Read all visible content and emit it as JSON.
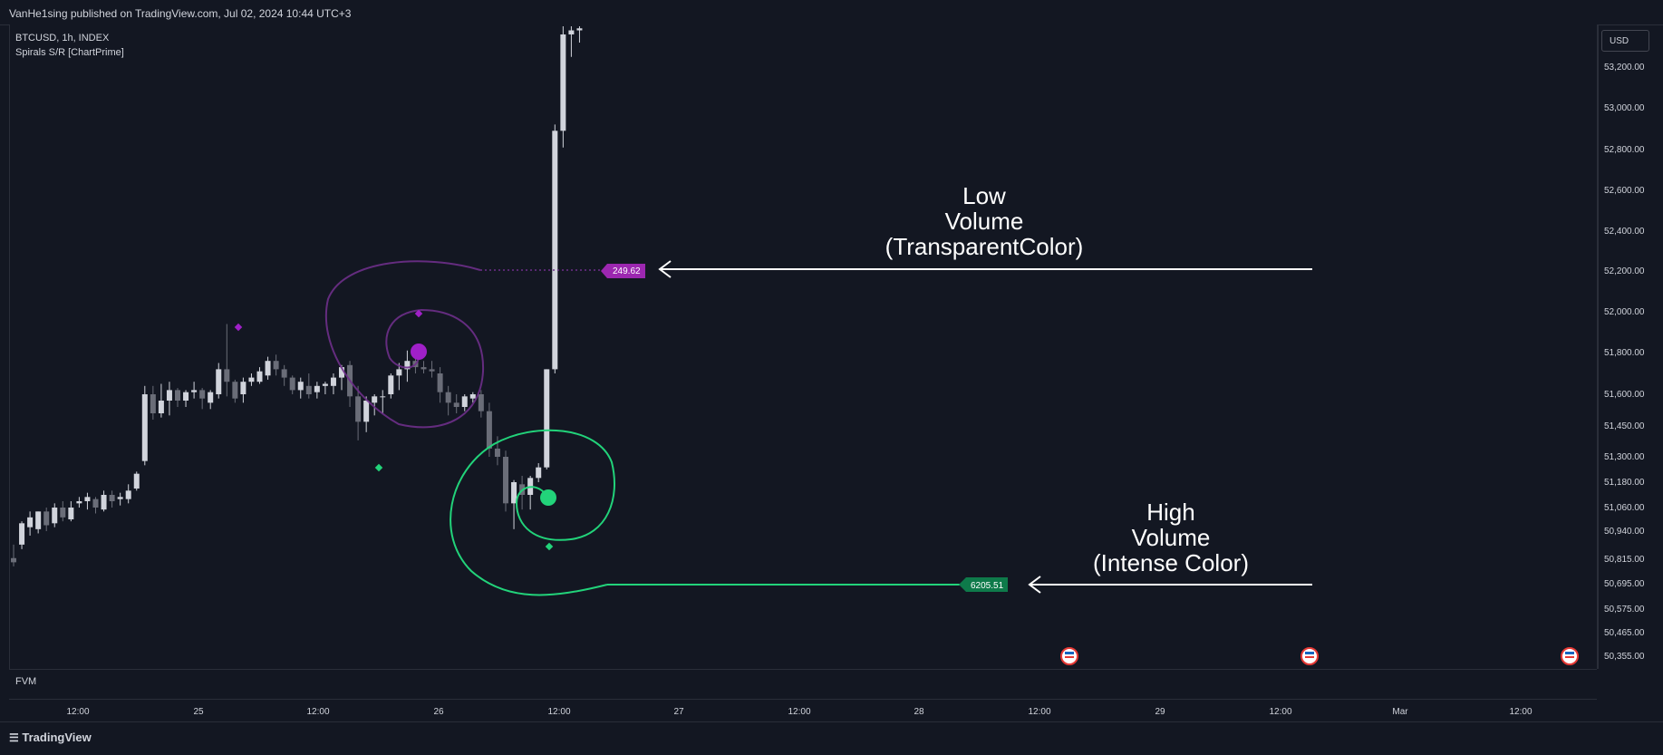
{
  "header": {
    "publisher": "VanHe1sing published on TradingView.com, Jul 02, 2024 10:44 UTC+3"
  },
  "legend": {
    "symbol": "BTCUSD, 1h, INDEX",
    "indicator": "Spirals S/R [ChartPrime]"
  },
  "price_axis": {
    "currency": "USD"
  },
  "pane": {
    "label": "FVM"
  },
  "footer": {
    "brand": "TradingView"
  },
  "annotations": {
    "low": {
      "line1": "Low",
      "line2": "Volume",
      "line3": "(TransparentColor)"
    },
    "high": {
      "line1": "High",
      "line2": "Volume",
      "line3": "(Intense Color)"
    }
  },
  "colors": {
    "background": "#131722",
    "up_candle": "#d1d4dc",
    "down_candle": "#6a6d78",
    "low_volume_spiral": "#6e2f8a",
    "low_volume_marker": "#a020c8",
    "high_volume_spiral": "#22d37a",
    "high_volume_label": "#0e7a4a",
    "annotation_text": "#ffffff"
  },
  "chart_data": {
    "type": "candlestick",
    "symbol": "BTCUSD",
    "timeframe": "1h",
    "y_ticks": [
      "53,200.00",
      "53,000.00",
      "52,800.00",
      "52,600.00",
      "52,400.00",
      "52,200.00",
      "52,000.00",
      "51,800.00",
      "51,600.00",
      "51,450.00",
      "51,300.00",
      "51,180.00",
      "51,060.00",
      "50,940.00",
      "50,815.00",
      "50,695.00",
      "50,575.00",
      "50,465.00",
      "50,355.00"
    ],
    "x_ticks": [
      "12:00",
      "25",
      "12:00",
      "26",
      "12:00",
      "27",
      "12:00",
      "28",
      "12:00",
      "29",
      "12:00",
      "Mar",
      "12:00"
    ],
    "candles": [
      {
        "o": 50820,
        "h": 50880,
        "l": 50780,
        "c": 50800
      },
      {
        "o": 50880,
        "h": 50990,
        "l": 50860,
        "c": 50980
      },
      {
        "o": 50960,
        "h": 51040,
        "l": 50920,
        "c": 51010
      },
      {
        "o": 50950,
        "h": 51040,
        "l": 50930,
        "c": 51040
      },
      {
        "o": 51040,
        "h": 51060,
        "l": 50940,
        "c": 50970
      },
      {
        "o": 50980,
        "h": 51080,
        "l": 50960,
        "c": 51060
      },
      {
        "o": 51060,
        "h": 51090,
        "l": 50990,
        "c": 51010
      },
      {
        "o": 51000,
        "h": 51090,
        "l": 50990,
        "c": 51060
      },
      {
        "o": 51080,
        "h": 51110,
        "l": 51060,
        "c": 51090
      },
      {
        "o": 51090,
        "h": 51130,
        "l": 51050,
        "c": 51110
      },
      {
        "o": 51100,
        "h": 51110,
        "l": 51030,
        "c": 51060
      },
      {
        "o": 51050,
        "h": 51140,
        "l": 51040,
        "c": 51120
      },
      {
        "o": 51120,
        "h": 51140,
        "l": 51060,
        "c": 51090
      },
      {
        "o": 51100,
        "h": 51130,
        "l": 51070,
        "c": 51110
      },
      {
        "o": 51100,
        "h": 51170,
        "l": 51080,
        "c": 51140
      },
      {
        "o": 51150,
        "h": 51230,
        "l": 51140,
        "c": 51220
      },
      {
        "o": 51280,
        "h": 51640,
        "l": 51260,
        "c": 51600
      },
      {
        "o": 51600,
        "h": 51640,
        "l": 51480,
        "c": 51510
      },
      {
        "o": 51510,
        "h": 51650,
        "l": 51490,
        "c": 51570
      },
      {
        "o": 51570,
        "h": 51660,
        "l": 51500,
        "c": 51620
      },
      {
        "o": 51620,
        "h": 51630,
        "l": 51540,
        "c": 51570
      },
      {
        "o": 51570,
        "h": 51620,
        "l": 51540,
        "c": 51610
      },
      {
        "o": 51610,
        "h": 51660,
        "l": 51580,
        "c": 51620
      },
      {
        "o": 51620,
        "h": 51630,
        "l": 51530,
        "c": 51580
      },
      {
        "o": 51560,
        "h": 51620,
        "l": 51530,
        "c": 51610
      },
      {
        "o": 51600,
        "h": 51750,
        "l": 51580,
        "c": 51720
      },
      {
        "o": 51720,
        "h": 51940,
        "l": 51590,
        "c": 51660
      },
      {
        "o": 51660,
        "h": 51670,
        "l": 51560,
        "c": 51580
      },
      {
        "o": 51600,
        "h": 51680,
        "l": 51560,
        "c": 51660
      },
      {
        "o": 51660,
        "h": 51700,
        "l": 51640,
        "c": 51680
      },
      {
        "o": 51660,
        "h": 51730,
        "l": 51650,
        "c": 51710
      },
      {
        "o": 51690,
        "h": 51780,
        "l": 51670,
        "c": 51760
      },
      {
        "o": 51760,
        "h": 51790,
        "l": 51690,
        "c": 51720
      },
      {
        "o": 51720,
        "h": 51740,
        "l": 51640,
        "c": 51680
      },
      {
        "o": 51680,
        "h": 51690,
        "l": 51600,
        "c": 51620
      },
      {
        "o": 51620,
        "h": 51680,
        "l": 51580,
        "c": 51660
      },
      {
        "o": 51640,
        "h": 51700,
        "l": 51580,
        "c": 51600
      },
      {
        "o": 51610,
        "h": 51660,
        "l": 51580,
        "c": 51640
      },
      {
        "o": 51640,
        "h": 51660,
        "l": 51600,
        "c": 51650
      },
      {
        "o": 51640,
        "h": 51700,
        "l": 51600,
        "c": 51680
      },
      {
        "o": 51680,
        "h": 51740,
        "l": 51620,
        "c": 51730
      },
      {
        "o": 51740,
        "h": 51760,
        "l": 51540,
        "c": 51590
      },
      {
        "o": 51590,
        "h": 51640,
        "l": 51380,
        "c": 51470
      },
      {
        "o": 51470,
        "h": 51590,
        "l": 51420,
        "c": 51570
      },
      {
        "o": 51560,
        "h": 51600,
        "l": 51500,
        "c": 51590
      },
      {
        "o": 51590,
        "h": 51620,
        "l": 51510,
        "c": 51590
      },
      {
        "o": 51600,
        "h": 51700,
        "l": 51580,
        "c": 51690
      },
      {
        "o": 51690,
        "h": 51750,
        "l": 51620,
        "c": 51720
      },
      {
        "o": 51720,
        "h": 51810,
        "l": 51660,
        "c": 51760
      },
      {
        "o": 51760,
        "h": 51790,
        "l": 51700,
        "c": 51730
      },
      {
        "o": 51730,
        "h": 51760,
        "l": 51700,
        "c": 51720
      },
      {
        "o": 51720,
        "h": 51760,
        "l": 51680,
        "c": 51710
      },
      {
        "o": 51700,
        "h": 51730,
        "l": 51560,
        "c": 51610
      },
      {
        "o": 51610,
        "h": 51640,
        "l": 51500,
        "c": 51560
      },
      {
        "o": 51560,
        "h": 51600,
        "l": 51510,
        "c": 51540
      },
      {
        "o": 51540,
        "h": 51600,
        "l": 51520,
        "c": 51590
      },
      {
        "o": 51580,
        "h": 51610,
        "l": 51560,
        "c": 51600
      },
      {
        "o": 51600,
        "h": 51620,
        "l": 51490,
        "c": 51520
      },
      {
        "o": 51520,
        "h": 51560,
        "l": 51300,
        "c": 51340
      },
      {
        "o": 51340,
        "h": 51400,
        "l": 51260,
        "c": 51300
      },
      {
        "o": 51300,
        "h": 51330,
        "l": 51040,
        "c": 51080
      },
      {
        "o": 51080,
        "h": 51190,
        "l": 50950,
        "c": 51180
      },
      {
        "o": 51170,
        "h": 51210,
        "l": 51050,
        "c": 51120
      },
      {
        "o": 51120,
        "h": 51210,
        "l": 51050,
        "c": 51200
      },
      {
        "o": 51200,
        "h": 51270,
        "l": 51180,
        "c": 51250
      },
      {
        "o": 51250,
        "h": 51720,
        "l": 51240,
        "c": 51720
      },
      {
        "o": 51720,
        "h": 52920,
        "l": 51700,
        "c": 52890
      },
      {
        "o": 52890,
        "h": 53400,
        "l": 52810,
        "c": 53360
      },
      {
        "o": 53360,
        "h": 53400,
        "l": 53250,
        "c": 53380
      },
      {
        "o": 53380,
        "h": 53400,
        "l": 53320,
        "c": 53390
      }
    ],
    "levels": [
      {
        "label": "249.62",
        "price": 52190,
        "volume": "low"
      },
      {
        "label": "6205.51",
        "price": 50695,
        "volume": "high"
      }
    ],
    "y_range": [
      50300,
      53380
    ]
  }
}
